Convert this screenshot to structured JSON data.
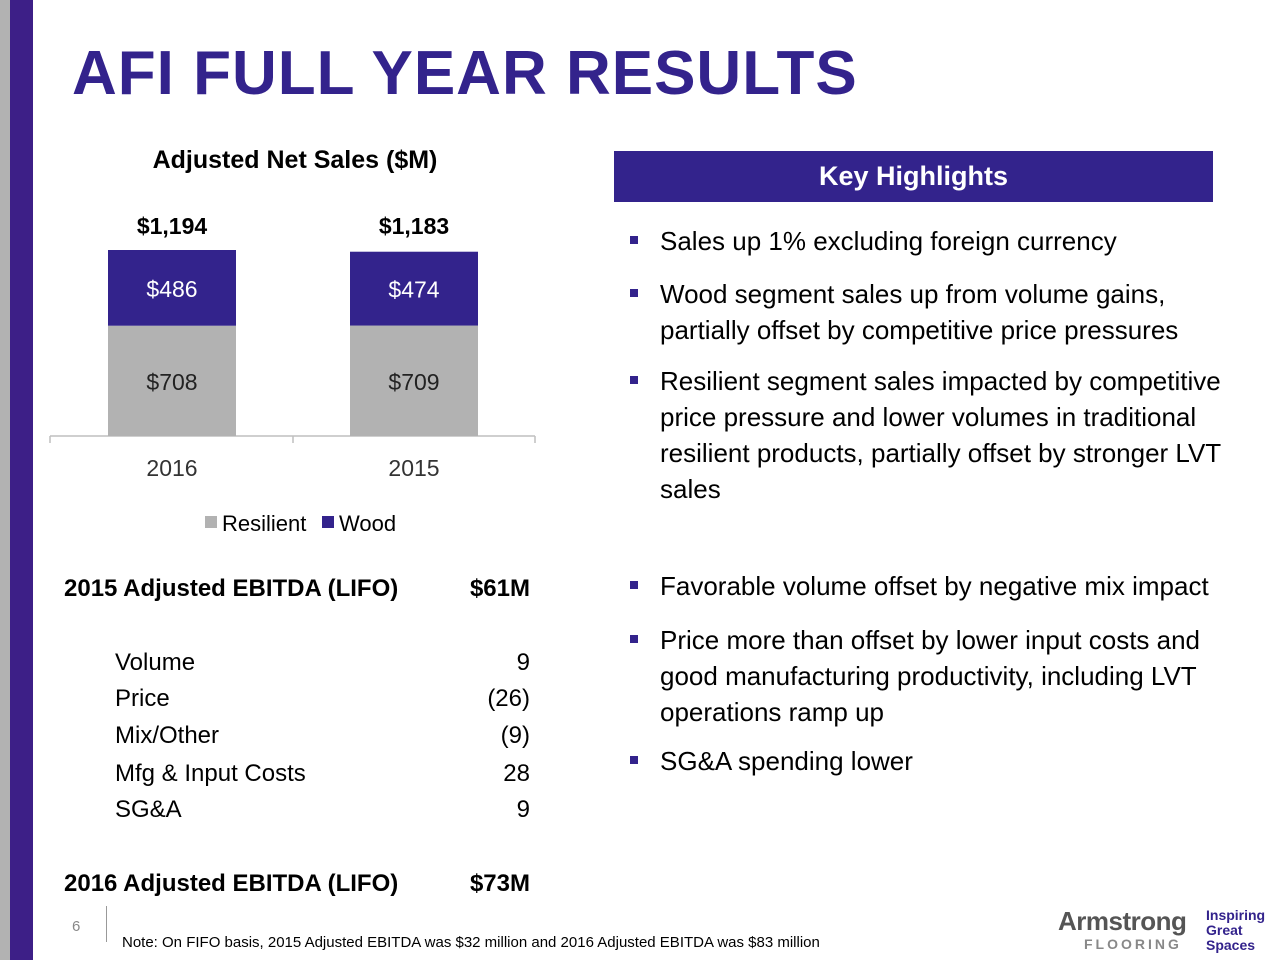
{
  "page": {
    "title": "AFI FULL YEAR RESULTS",
    "page_number": "6",
    "footnote": "Note: On FIFO basis, 2015 Adjusted EBITDA was $32 million and 2016 Adjusted EBITDA was $83 million",
    "colors": {
      "brand_purple": "#33238c",
      "gray_bar": "#b2b2b2",
      "side_purple": "#3d1f87"
    }
  },
  "chart_data": {
    "type": "bar",
    "stacked": true,
    "title": "Adjusted Net Sales ($M)",
    "categories": [
      "2016",
      "2015"
    ],
    "series": [
      {
        "name": "Resilient",
        "values": [
          708,
          709
        ],
        "labels": [
          "$708",
          "$709"
        ],
        "color": "#b2b2b2"
      },
      {
        "name": "Wood",
        "values": [
          486,
          474
        ],
        "labels": [
          "$486",
          "$474"
        ],
        "color": "#33238c"
      }
    ],
    "totals": [
      1194,
      1183
    ],
    "total_labels": [
      "$1,194",
      "$1,183"
    ],
    "legend": [
      "Resilient",
      "Wood"
    ],
    "ylim": [
      0,
      1194
    ]
  },
  "highlights": {
    "header": "Key Highlights",
    "bullets": [
      "Sales up 1% excluding foreign currency",
      "Wood segment sales up from volume gains, partially offset by competitive price pressures",
      "Resilient segment sales impacted by competitive price pressure and lower volumes in traditional resilient products, partially offset by stronger LVT sales",
      "Favorable volume offset by negative mix impact",
      "Price more than offset by lower input costs and good manufacturing productivity, including LVT operations ramp up",
      "SG&A spending lower"
    ]
  },
  "ebitda": {
    "start_label": "2015 Adjusted EBITDA (LIFO)",
    "start_value": "$61M",
    "items": [
      {
        "label": "Volume",
        "value": "9"
      },
      {
        "label": "Price",
        "value": "(26)"
      },
      {
        "label": "Mix/Other",
        "value": "(9)"
      },
      {
        "label": "Mfg & Input Costs",
        "value": "28"
      },
      {
        "label": "SG&A",
        "value": "9"
      }
    ],
    "end_label": "2016 Adjusted EBITDA (LIFO)",
    "end_value": "$73M"
  },
  "logo": {
    "brand": "Armstrong",
    "sub": "FLOORING",
    "tagline": [
      "Inspiring",
      "Great",
      "Spaces"
    ]
  }
}
